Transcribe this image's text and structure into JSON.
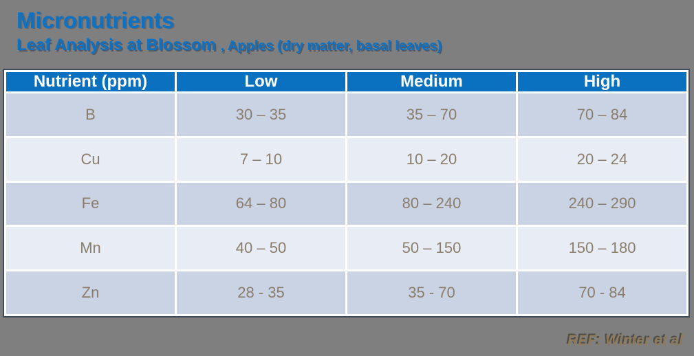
{
  "slide": {
    "title": "Micronutrients",
    "subtitle_main": "Leaf Analysis at Blossom ",
    "subtitle_detail": ", Apples (dry matter, basal leaves)",
    "reference": "REF: Winter et al"
  },
  "table": {
    "columns": {
      "nutrient": "Nutrient (ppm)",
      "low": "Low",
      "medium": "Medium",
      "high": "High"
    },
    "rows": [
      {
        "nutrient": "B",
        "low": "30 – 35",
        "medium": "35 – 70",
        "high": "70 – 84"
      },
      {
        "nutrient": "Cu",
        "low": "7 – 10",
        "medium": "10 – 20",
        "high": "20 – 24"
      },
      {
        "nutrient": "Fe",
        "low": "64 – 80",
        "medium": "80 – 240",
        "high": "240 – 290"
      },
      {
        "nutrient": "Mn",
        "low": "40 – 50",
        "medium": "50 – 150",
        "high": "150 – 180"
      },
      {
        "nutrient": "Zn",
        "low": "28 - 35",
        "medium": "35 - 70",
        "high": "70 - 84"
      }
    ]
  },
  "theme": {
    "background_gray": "#7f7f7f",
    "title_blue": "#0d72c3",
    "header_blue": "#0a70c0",
    "row_dark": "#cad3e4",
    "row_light": "#e8ecf4",
    "cell_text": "#8a7d6c",
    "reference_tan": "#8e7a5c",
    "table_outline": "#3e4a58"
  }
}
